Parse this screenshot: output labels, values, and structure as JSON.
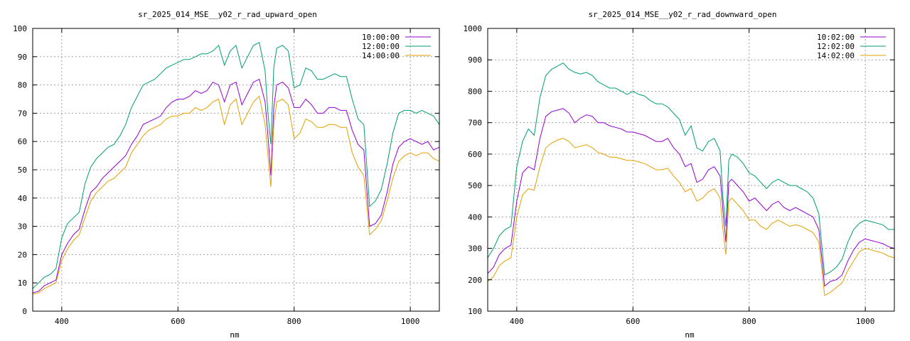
{
  "chart_data": [
    {
      "type": "line",
      "title": "sr_2025_014_MSE__y02_r_rad_upward_open",
      "xlabel": "nm",
      "ylabel": "",
      "xlim": [
        350,
        1050
      ],
      "ylim": [
        0,
        100
      ],
      "xticks": [
        400,
        600,
        800,
        1000
      ],
      "yticks": [
        0,
        10,
        20,
        30,
        40,
        50,
        60,
        70,
        80,
        90,
        100
      ],
      "grid": true,
      "legend_position": "top-right",
      "x": [
        350,
        360,
        370,
        380,
        390,
        400,
        410,
        420,
        430,
        440,
        450,
        460,
        470,
        480,
        490,
        500,
        510,
        520,
        530,
        540,
        550,
        560,
        570,
        580,
        590,
        600,
        610,
        620,
        630,
        640,
        650,
        660,
        670,
        680,
        690,
        700,
        710,
        720,
        730,
        740,
        750,
        755,
        760,
        765,
        770,
        780,
        790,
        800,
        810,
        820,
        830,
        840,
        850,
        860,
        870,
        880,
        890,
        900,
        910,
        920,
        930,
        940,
        950,
        960,
        970,
        980,
        990,
        1000,
        1010,
        1020,
        1030,
        1040,
        1050
      ],
      "series": [
        {
          "name": "10:00:00",
          "color": "#9400d3",
          "values": [
            6.5,
            7,
            9,
            10,
            11,
            20,
            24,
            27,
            29,
            36,
            42,
            44,
            47,
            49,
            51,
            53,
            55,
            59,
            62,
            66,
            67,
            68,
            69,
            72,
            74,
            75,
            75,
            76,
            78,
            77,
            78,
            81,
            80,
            74,
            80,
            81,
            73,
            77,
            81,
            82,
            74,
            62,
            48,
            72,
            80,
            81,
            79,
            72,
            72,
            75,
            73,
            70,
            70,
            72,
            72,
            71,
            71,
            64,
            59,
            57,
            30,
            31,
            34,
            42,
            52,
            58,
            60,
            61,
            60,
            59,
            60,
            57,
            58
          ]
        },
        {
          "name": "12:00:00",
          "color": "#009e73",
          "values": [
            8,
            10,
            12,
            13,
            15,
            26,
            31,
            33,
            35,
            45,
            51,
            54,
            56,
            58,
            59,
            62,
            66,
            72,
            76,
            80,
            81,
            82,
            84,
            86,
            87,
            88,
            89,
            89,
            90,
            91,
            91,
            92,
            94,
            87,
            92,
            94,
            86,
            90,
            94,
            95,
            85,
            70,
            59,
            86,
            93,
            94,
            92,
            79,
            80,
            86,
            85,
            82,
            82,
            83,
            84,
            83,
            83,
            75,
            68,
            66,
            37,
            39,
            43,
            52,
            63,
            70,
            71,
            71,
            70,
            71,
            70,
            69,
            66
          ]
        },
        {
          "name": "14:00:00",
          "color": "#e69f00",
          "values": [
            6,
            6.5,
            8,
            9,
            10,
            18,
            22,
            25,
            27,
            33,
            39,
            42,
            44,
            46,
            47,
            49,
            51,
            56,
            59,
            62,
            64,
            65,
            66,
            68,
            69,
            69,
            70,
            70,
            72,
            71,
            72,
            74,
            75,
            66,
            73,
            75,
            66,
            70,
            74,
            76,
            66,
            55,
            44,
            66,
            74,
            75,
            73,
            61,
            63,
            68,
            67,
            65,
            65,
            66,
            66,
            65,
            65,
            56,
            51,
            48,
            27,
            29,
            32,
            39,
            47,
            53,
            55,
            56,
            55,
            56,
            56,
            54,
            53
          ]
        }
      ]
    },
    {
      "type": "line",
      "title": "sr_2025_014_MSE__y02_r_rad_downward_open",
      "xlabel": "nm",
      "ylabel": "",
      "xlim": [
        350,
        1050
      ],
      "ylim": [
        100,
        1000
      ],
      "xticks": [
        400,
        600,
        800,
        1000
      ],
      "yticks": [
        100,
        200,
        300,
        400,
        500,
        600,
        700,
        800,
        900,
        1000
      ],
      "grid": true,
      "legend_position": "top-right",
      "x": [
        350,
        360,
        370,
        380,
        390,
        400,
        410,
        420,
        430,
        440,
        450,
        460,
        470,
        480,
        490,
        500,
        510,
        520,
        530,
        540,
        550,
        560,
        570,
        580,
        590,
        600,
        610,
        620,
        630,
        640,
        650,
        660,
        670,
        680,
        690,
        700,
        710,
        720,
        730,
        740,
        750,
        755,
        760,
        765,
        770,
        780,
        790,
        800,
        810,
        820,
        830,
        840,
        850,
        860,
        870,
        880,
        890,
        900,
        910,
        920,
        930,
        940,
        950,
        960,
        970,
        980,
        990,
        1000,
        1010,
        1020,
        1030,
        1040,
        1050
      ],
      "series": [
        {
          "name": "10:02:00",
          "color": "#9400d3",
          "values": [
            220,
            240,
            280,
            300,
            310,
            450,
            540,
            560,
            550,
            650,
            720,
            735,
            740,
            745,
            730,
            700,
            715,
            725,
            720,
            700,
            700,
            690,
            685,
            680,
            670,
            670,
            665,
            660,
            650,
            640,
            640,
            650,
            620,
            600,
            560,
            570,
            510,
            520,
            550,
            560,
            530,
            420,
            320,
            510,
            520,
            500,
            480,
            450,
            460,
            440,
            420,
            440,
            450,
            430,
            420,
            430,
            420,
            410,
            400,
            360,
            180,
            195,
            200,
            215,
            260,
            295,
            320,
            330,
            325,
            320,
            315,
            305,
            300
          ]
        },
        {
          "name": "12:02:00",
          "color": "#009e73",
          "values": [
            270,
            300,
            340,
            360,
            370,
            560,
            640,
            680,
            660,
            780,
            850,
            870,
            880,
            890,
            870,
            860,
            855,
            860,
            850,
            830,
            820,
            810,
            810,
            800,
            790,
            800,
            790,
            785,
            770,
            760,
            760,
            750,
            730,
            710,
            660,
            690,
            620,
            610,
            640,
            650,
            610,
            460,
            370,
            580,
            600,
            590,
            570,
            540,
            530,
            510,
            490,
            510,
            520,
            510,
            500,
            500,
            490,
            480,
            460,
            410,
            215,
            225,
            240,
            265,
            320,
            360,
            380,
            390,
            385,
            380,
            375,
            360,
            360
          ]
        },
        {
          "name": "14:02:00",
          "color": "#e69f00",
          "values": [
            195,
            210,
            245,
            260,
            270,
            400,
            470,
            490,
            485,
            560,
            620,
            635,
            645,
            650,
            640,
            620,
            625,
            630,
            620,
            605,
            600,
            590,
            590,
            585,
            580,
            580,
            575,
            570,
            560,
            550,
            550,
            555,
            530,
            510,
            480,
            490,
            450,
            460,
            480,
            490,
            460,
            360,
            280,
            450,
            460,
            440,
            420,
            390,
            390,
            370,
            360,
            380,
            390,
            380,
            370,
            375,
            370,
            360,
            350,
            320,
            150,
            160,
            175,
            190,
            230,
            260,
            290,
            300,
            295,
            290,
            285,
            275,
            270
          ]
        }
      ]
    }
  ]
}
